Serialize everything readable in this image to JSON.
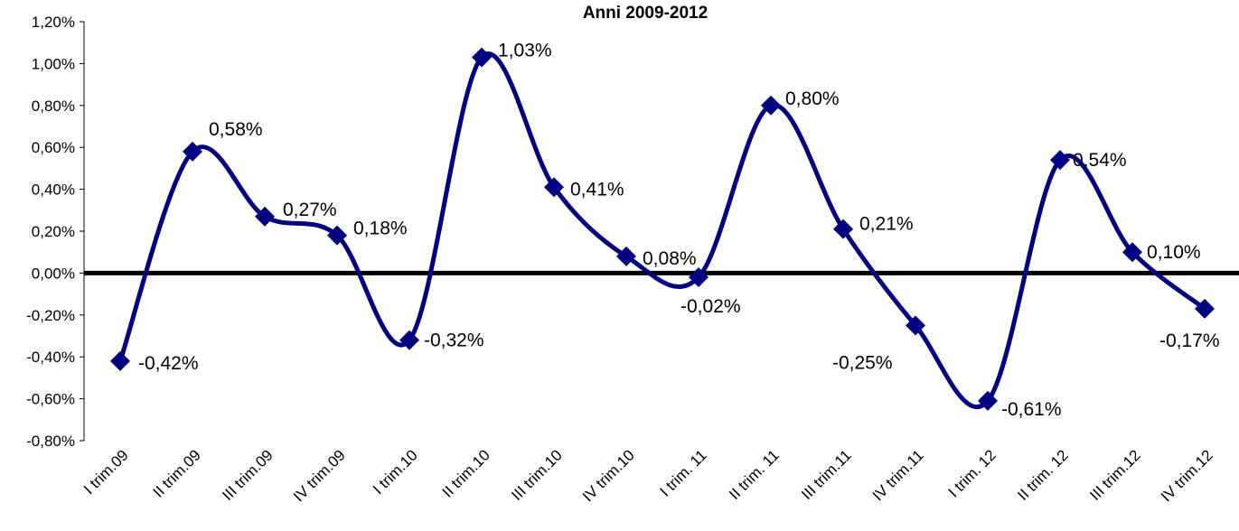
{
  "chart_data": {
    "type": "line",
    "title": "Anni 2009-2012",
    "categories": [
      "I trim.09",
      "II trim.09",
      "III trim.09",
      "IV trim.09",
      "I trim.10",
      "II trim.10",
      "III trim.10",
      "IV trim.10",
      "I trim. 11",
      "II trim. 11",
      "III trim.11",
      "IV trim.11",
      "I trim. 12",
      "II trim. 12",
      "III trim.12",
      "IV trim.12"
    ],
    "series": [
      {
        "values": [
          -0.42,
          0.58,
          0.27,
          0.18,
          -0.32,
          1.03,
          0.41,
          0.08,
          -0.02,
          0.8,
          0.21,
          -0.25,
          -0.61,
          0.54,
          0.1,
          -0.17
        ],
        "labels": [
          "-0,42%",
          "0,58%",
          "0,27%",
          "0,18%",
          "-0,32%",
          "1,03%",
          "0,41%",
          "0,08%",
          "-0,02%",
          "0,80%",
          "0,21%",
          "-0,25%",
          "-0,61%",
          "0,54%",
          "0,10%",
          "-0,17%"
        ],
        "color": "#000080"
      }
    ],
    "yticks": [
      1.2,
      1.0,
      0.8,
      0.6,
      0.4,
      0.2,
      0.0,
      -0.2,
      -0.4,
      -0.6,
      -0.8
    ],
    "ytick_labels": [
      "1,20%",
      "1,00%",
      "0,80%",
      "0,60%",
      "0,40%",
      "0,20%",
      "0,00%",
      "-0,20%",
      "-0,40%",
      "-0,60%",
      "-0,80%"
    ],
    "ylim": [
      -0.8,
      1.2
    ],
    "grid": false,
    "zero_line_color": "#000000",
    "smooth": true,
    "marker": "diamond"
  }
}
